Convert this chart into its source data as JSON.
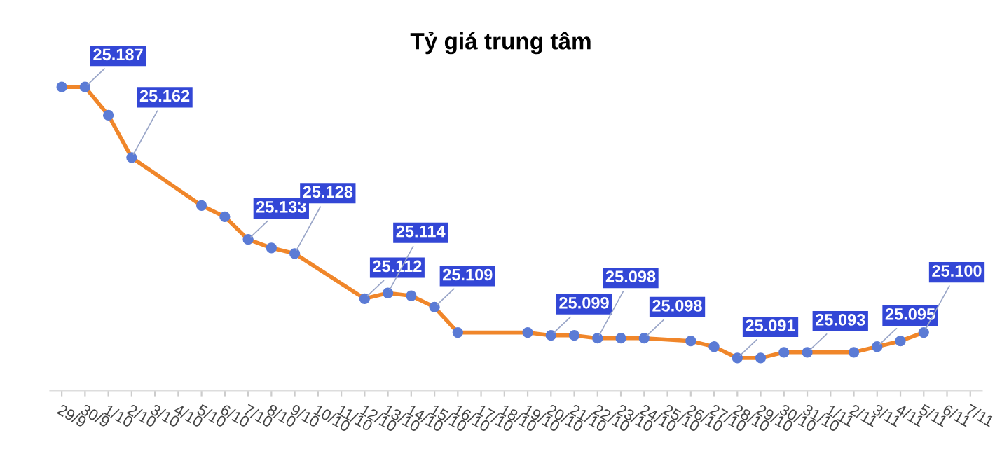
{
  "chart_data": {
    "type": "line",
    "title": "Tỷ giá trung tâm",
    "categories": [
      "29/9",
      "30/9",
      "1/10",
      "2/10",
      "3/10",
      "4/10",
      "5/10",
      "6/10",
      "7/10",
      "8/10",
      "9/10",
      "10/10",
      "11/10",
      "12/10",
      "13/10",
      "14/10",
      "15/10",
      "16/10",
      "17/10",
      "18/10",
      "19/10",
      "20/10",
      "21/10",
      "22/10",
      "23/10",
      "24/10",
      "25/10",
      "26/10",
      "27/10",
      "28/10",
      "29/10",
      "30/10",
      "31/10",
      "1/11",
      "2/11",
      "3/11",
      "4/11",
      "5/11",
      "6/11",
      "7/11"
    ],
    "series": [
      {
        "color": "#f0862a",
        "values": [
          25.187,
          25.187,
          25.177,
          25.162,
          null,
          null,
          25.145,
          25.141,
          25.133,
          25.13,
          25.128,
          null,
          null,
          25.112,
          25.114,
          25.113,
          25.109,
          25.1,
          null,
          null,
          25.1,
          25.099,
          25.099,
          25.098,
          25.098,
          25.098,
          null,
          25.097,
          25.095,
          25.091,
          25.091,
          25.093,
          25.093,
          null,
          25.093,
          25.095,
          25.097,
          25.1,
          null,
          null
        ],
        "value_labels": [
          null,
          "25.187",
          null,
          "25.162",
          null,
          null,
          null,
          null,
          "25.133",
          null,
          "25.128",
          null,
          null,
          "25.112",
          "25.114",
          null,
          "25.109",
          null,
          null,
          null,
          null,
          "25.099",
          null,
          "25.098",
          null,
          "25.098",
          null,
          null,
          null,
          "25.091",
          null,
          null,
          "25.093",
          null,
          null,
          "25.095",
          null,
          "25.100",
          null,
          null
        ]
      }
    ],
    "tick_labels": "x",
    "marker": "circle",
    "line_style": "solid",
    "grid": false,
    "legend": false
  }
}
